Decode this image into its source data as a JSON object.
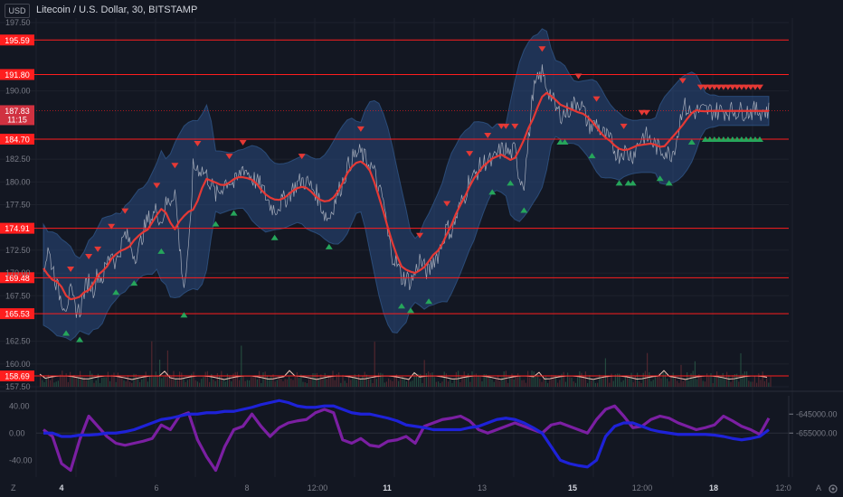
{
  "header": {
    "currency": "USD",
    "title": "Litecoin / U.S. Dollar, 30, BITSTAMP"
  },
  "footer": {
    "timezone_label": "Z",
    "auto_label": "A"
  },
  "colors": {
    "background": "#131722",
    "grid": "#1e222d",
    "band_fill": "#2a4a7f",
    "price_line": "#d1d4dc",
    "ma_line": "#e53935",
    "level_line": "#ff1e1e",
    "buy_marker": "#26a65b",
    "sell_marker": "#e53935",
    "osc_purple": "#7b1fa2",
    "osc_blue": "#1e22d8"
  },
  "chart_data": [
    {
      "type": "line",
      "title": "Litecoin / U.S. Dollar, 30, BITSTAMP",
      "x_ticks": [
        "4",
        "6",
        "8",
        "12:00",
        "11",
        "13",
        "15",
        "12:00",
        "18",
        "12:0"
      ],
      "y_ticks": [
        "197.50",
        "190.00",
        "182.50",
        "180.00",
        "177.50",
        "172.50",
        "170.00",
        "167.50",
        "162.50",
        "160.00",
        "157.50"
      ],
      "ylim": [
        157.5,
        198.0
      ],
      "levels": [
        195.59,
        191.8,
        184.7,
        174.91,
        169.48,
        165.53,
        158.69
      ],
      "level_labels": [
        "195.59",
        "191.80",
        "184.70",
        "174.91",
        "169.48",
        "165.53",
        "158.69"
      ],
      "current_price": "187.83",
      "countdown": "11:15",
      "current_value": 187.83,
      "series": [
        {
          "x": [
            0,
            5,
            10,
            15,
            20,
            25,
            30,
            35,
            40,
            45,
            50,
            55,
            60,
            65,
            70,
            75,
            80,
            85,
            90,
            95,
            100,
            105,
            110,
            115,
            120,
            125,
            130,
            135,
            140,
            145,
            150,
            155,
            160,
            165,
            170,
            175,
            180,
            185,
            190,
            195,
            200,
            205,
            210,
            215,
            220,
            225,
            230,
            235,
            240,
            245,
            250,
            255,
            260,
            265,
            270,
            275,
            280,
            285,
            290,
            295,
            300,
            305,
            310,
            315,
            320,
            325,
            330,
            335,
            340,
            345,
            350,
            355,
            360,
            365,
            370,
            375,
            380,
            385,
            390,
            395,
            400,
            405,
            410,
            415,
            420,
            425,
            430,
            435,
            440,
            445,
            450,
            455,
            460,
            465,
            470,
            475,
            480,
            485,
            490,
            495,
            500,
            505,
            510,
            515,
            520,
            525,
            530,
            535,
            540,
            545,
            550,
            555,
            560,
            565,
            570,
            575,
            580,
            585,
            590,
            595,
            600,
            605,
            610,
            615,
            620,
            625,
            630,
            635,
            640,
            645,
            650,
            655,
            660,
            665,
            670,
            675,
            680,
            685,
            690,
            695,
            700,
            705,
            710,
            715,
            720,
            725,
            730,
            735,
            740,
            745,
            750,
            755,
            760,
            765,
            770,
            775,
            780,
            785,
            790,
            795,
            800
          ],
          "y": [
            170.2,
            172.5,
            170.8,
            168.5,
            167.0,
            166.5,
            167.8,
            166.2,
            165.8,
            168.0,
            169.2,
            168.2,
            170.0,
            169.4,
            171.0,
            172.5,
            171.0,
            172.8,
            174.2,
            173.5,
            172.0,
            172.4,
            174.5,
            175.8,
            176.2,
            177.0,
            175.5,
            177.5,
            178.0,
            179.2,
            173.0,
            168.5,
            172.0,
            181.5,
            181.6,
            181.3,
            180.7,
            179.8,
            178.5,
            179.0,
            180.0,
            180.2,
            179.7,
            180.4,
            181.7,
            181.1,
            180.5,
            180.0,
            179.5,
            178.5,
            177.5,
            177.0,
            177.5,
            178.0,
            178.5,
            179.2,
            179.8,
            180.2,
            180.0,
            179.5,
            179.0,
            177.8,
            176.5,
            176.0,
            177.5,
            178.8,
            180.0,
            181.5,
            182.5,
            183.0,
            183.2,
            182.5,
            182.0,
            181.0,
            179.0,
            178.0,
            174.0,
            172.0,
            171.0,
            169.5,
            169.5,
            169.0,
            170.0,
            171.5,
            170.5,
            170.0,
            171.5,
            172.0,
            173.5,
            175.0,
            174.5,
            176.0,
            177.5,
            178.5,
            180.5,
            180.5,
            181.5,
            182.0,
            182.5,
            182.0,
            183.0,
            183.5,
            183.5,
            183.0,
            183.5,
            180.5,
            180.0,
            184.5,
            190.0,
            191.0,
            192.0,
            190.5,
            189.5,
            188.0,
            187.5,
            187.5,
            188.0,
            188.5,
            189.0,
            188.0,
            186.5,
            186.0,
            186.5,
            185.5,
            185.0,
            184.5,
            183.5,
            183.0,
            183.5,
            183.0,
            183.0,
            184.0,
            185.0,
            185.0,
            184.5,
            184.0,
            183.5,
            183.5,
            183.0,
            183.5,
            185.5,
            188.5,
            188.0,
            187.5,
            187.8,
            187.8,
            187.8,
            187.8,
            187.8,
            187.8,
            187.8,
            187.8,
            187.8,
            187.8,
            187.8,
            187.8,
            187.8,
            187.8,
            187.8,
            187.8,
            187.8
          ]
        }
      ]
    },
    {
      "type": "line",
      "y_ticks": [
        "40.00",
        "0.00",
        "-40.00"
      ],
      "right_ticks": [
        "-645000.00",
        "-655000.00"
      ],
      "ylim": [
        -65,
        55
      ],
      "series": [
        {
          "x": [
            0,
            10,
            20,
            30,
            40,
            50,
            60,
            70,
            80,
            90,
            100,
            110,
            120,
            130,
            140,
            150,
            160,
            170,
            180,
            190,
            200,
            210,
            220,
            230,
            240,
            250,
            260,
            270,
            280,
            290,
            300,
            310,
            320,
            330,
            340,
            350,
            360,
            370,
            380,
            390,
            400,
            410,
            420,
            430,
            440,
            450,
            460,
            470,
            480,
            490,
            500,
            510,
            520,
            530,
            540,
            550,
            560,
            570,
            580,
            590,
            600,
            610,
            620,
            630,
            640,
            650,
            660,
            670,
            680,
            690,
            700,
            710,
            720,
            730,
            740,
            750,
            760,
            770,
            780,
            790,
            800
          ],
          "y": [
            5,
            -5,
            -45,
            -55,
            -10,
            25,
            10,
            -5,
            -15,
            -18,
            -15,
            -12,
            -8,
            12,
            5,
            25,
            30,
            -10,
            -35,
            -55,
            -20,
            5,
            10,
            28,
            10,
            -5,
            8,
            15,
            18,
            20,
            30,
            35,
            30,
            -10,
            -15,
            -8,
            -18,
            -20,
            -12,
            -10,
            -5,
            -15,
            10,
            15,
            20,
            22,
            25,
            18,
            5,
            0,
            5,
            10,
            15,
            10,
            5,
            0,
            12,
            15,
            10,
            5,
            0,
            20,
            35,
            40,
            25,
            8,
            10,
            20,
            25,
            22,
            15,
            10,
            5,
            8,
            12,
            25,
            18,
            10,
            5,
            -2,
            22
          ]
        },
        {
          "x": [
            0,
            10,
            20,
            30,
            40,
            50,
            60,
            70,
            80,
            90,
            100,
            110,
            120,
            130,
            140,
            150,
            160,
            170,
            180,
            190,
            200,
            210,
            220,
            230,
            240,
            250,
            260,
            270,
            280,
            290,
            300,
            310,
            320,
            330,
            340,
            350,
            360,
            370,
            380,
            390,
            400,
            410,
            420,
            430,
            440,
            450,
            460,
            470,
            480,
            490,
            500,
            510,
            520,
            530,
            540,
            550,
            560,
            570,
            580,
            590,
            600,
            610,
            620,
            630,
            640,
            650,
            660,
            670,
            680,
            690,
            700,
            710,
            720,
            730,
            740,
            750,
            760,
            770,
            780,
            790,
            800
          ],
          "y": [
            0,
            0,
            -5,
            -5,
            -3,
            -3,
            -2,
            0,
            0,
            2,
            5,
            10,
            15,
            20,
            22,
            25,
            28,
            28,
            30,
            30,
            32,
            32,
            35,
            38,
            42,
            45,
            48,
            45,
            40,
            38,
            38,
            40,
            40,
            35,
            30,
            28,
            28,
            25,
            22,
            18,
            12,
            10,
            8,
            5,
            5,
            5,
            5,
            8,
            10,
            15,
            20,
            22,
            20,
            15,
            8,
            0,
            -20,
            -40,
            -45,
            -48,
            -50,
            -40,
            -5,
            10,
            15,
            15,
            10,
            5,
            2,
            0,
            -2,
            -2,
            -2,
            -2,
            -3,
            -5,
            -8,
            -10,
            -8,
            -5,
            5
          ]
        }
      ]
    }
  ]
}
